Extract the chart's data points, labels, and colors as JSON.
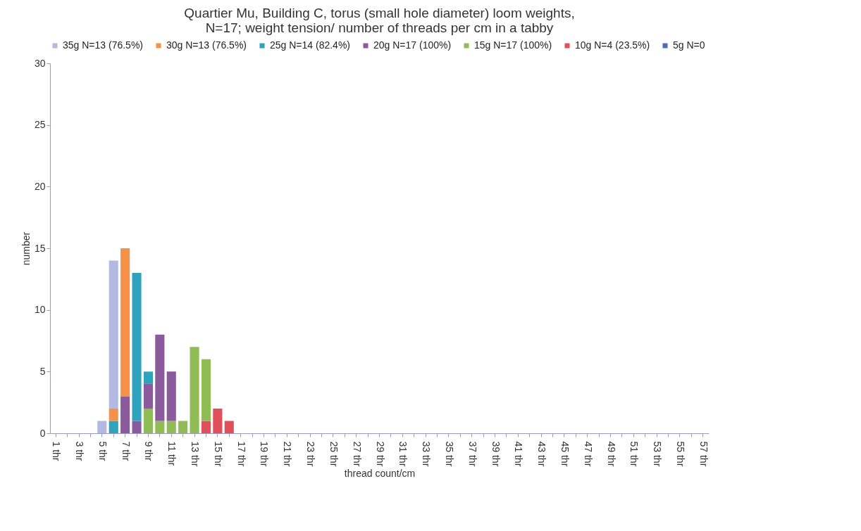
{
  "chart_data": {
    "type": "bar",
    "stacked": true,
    "title": "Quartier Mu, Building C, torus (small hole diameter) loom weights, N=17; weight tension/ number of threads per cm in a tabby",
    "xlabel": "thread count/cm",
    "ylabel": "number",
    "categories": [
      "1 thr",
      null,
      "3 thr",
      null,
      "5 thr",
      null,
      "7 thr",
      null,
      "9 thr",
      null,
      "11 thr",
      null,
      "13 thr",
      null,
      "15 thr",
      null,
      "17 thr",
      null,
      "19 thr",
      null,
      "21 thr",
      null,
      "23 thr",
      null,
      "25 thr",
      null,
      "27 thr",
      null,
      "29 thr",
      null,
      "31 thr",
      null,
      "33 thr",
      null,
      "35 thr",
      null,
      "37 thr",
      null,
      "39 thr",
      null,
      "41 thr",
      null,
      "43 thr",
      null,
      "45 thr",
      null,
      "47 thr",
      null,
      "49 thr",
      null,
      "51 thr",
      null,
      "53 thr",
      null,
      "55 thr",
      null,
      "57 thr"
    ],
    "series": [
      {
        "name": "5g N=0",
        "color": "#4a6fb5",
        "values": [
          0,
          0,
          0,
          0,
          0,
          0,
          0,
          0,
          0,
          0,
          0,
          0,
          0,
          0,
          0,
          0,
          0,
          0,
          0,
          0,
          0,
          0,
          0,
          0,
          0,
          0,
          0,
          0,
          0,
          0,
          0,
          0,
          0,
          0,
          0,
          0,
          0,
          0,
          0,
          0,
          0,
          0,
          0,
          0,
          0,
          0,
          0,
          0,
          0,
          0,
          0,
          0,
          0,
          0,
          0,
          0,
          0
        ]
      },
      {
        "name": "10g N=4 (23.5%)",
        "color": "#e0505a",
        "values": [
          0,
          0,
          0,
          0,
          0,
          0,
          0,
          0,
          0,
          0,
          0,
          0,
          0,
          1,
          2,
          1,
          0,
          0,
          0,
          0,
          0,
          0,
          0,
          0,
          0,
          0,
          0,
          0,
          0,
          0,
          0,
          0,
          0,
          0,
          0,
          0,
          0,
          0,
          0,
          0,
          0,
          0,
          0,
          0,
          0,
          0,
          0,
          0,
          0,
          0,
          0,
          0,
          0,
          0,
          0,
          0,
          0
        ]
      },
      {
        "name": "15g N=17 (100%)",
        "color": "#8fbc55",
        "values": [
          0,
          0,
          0,
          0,
          0,
          0,
          0,
          0,
          2,
          1,
          1,
          1,
          7,
          5,
          0,
          0,
          0,
          0,
          0,
          0,
          0,
          0,
          0,
          0,
          0,
          0,
          0,
          0,
          0,
          0,
          0,
          0,
          0,
          0,
          0,
          0,
          0,
          0,
          0,
          0,
          0,
          0,
          0,
          0,
          0,
          0,
          0,
          0,
          0,
          0,
          0,
          0,
          0,
          0,
          0,
          0,
          0
        ]
      },
      {
        "name": "20g N=17 (100%)",
        "color": "#8b5a9c",
        "values": [
          0,
          0,
          0,
          0,
          0,
          0,
          3,
          1,
          2,
          7,
          4,
          0,
          0,
          0,
          0,
          0,
          0,
          0,
          0,
          0,
          0,
          0,
          0,
          0,
          0,
          0,
          0,
          0,
          0,
          0,
          0,
          0,
          0,
          0,
          0,
          0,
          0,
          0,
          0,
          0,
          0,
          0,
          0,
          0,
          0,
          0,
          0,
          0,
          0,
          0,
          0,
          0,
          0,
          0,
          0,
          0,
          0
        ]
      },
      {
        "name": "25g N=14 (82.4%)",
        "color": "#2fa3bd",
        "values": [
          0,
          0,
          0,
          0,
          0,
          1,
          0,
          12,
          1,
          0,
          0,
          0,
          0,
          0,
          0,
          0,
          0,
          0,
          0,
          0,
          0,
          0,
          0,
          0,
          0,
          0,
          0,
          0,
          0,
          0,
          0,
          0,
          0,
          0,
          0,
          0,
          0,
          0,
          0,
          0,
          0,
          0,
          0,
          0,
          0,
          0,
          0,
          0,
          0,
          0,
          0,
          0,
          0,
          0,
          0,
          0,
          0
        ]
      },
      {
        "name": "30g N=13 (76.5%)",
        "color": "#f59248",
        "values": [
          0,
          0,
          0,
          0,
          0,
          1,
          12,
          0,
          0,
          0,
          0,
          0,
          0,
          0,
          0,
          0,
          0,
          0,
          0,
          0,
          0,
          0,
          0,
          0,
          0,
          0,
          0,
          0,
          0,
          0,
          0,
          0,
          0,
          0,
          0,
          0,
          0,
          0,
          0,
          0,
          0,
          0,
          0,
          0,
          0,
          0,
          0,
          0,
          0,
          0,
          0,
          0,
          0,
          0,
          0,
          0,
          0
        ]
      },
      {
        "name": "35g N=13 (76.5%)",
        "color": "#b3b9e0",
        "values": [
          0,
          0,
          0,
          0,
          1,
          12,
          0,
          0,
          0,
          0,
          0,
          0,
          0,
          0,
          0,
          0,
          0,
          0,
          0,
          0,
          0,
          0,
          0,
          0,
          0,
          0,
          0,
          0,
          0,
          0,
          0,
          0,
          0,
          0,
          0,
          0,
          0,
          0,
          0,
          0,
          0,
          0,
          0,
          0,
          0,
          0,
          0,
          0,
          0,
          0,
          0,
          0,
          0,
          0,
          0,
          0,
          0
        ]
      }
    ],
    "ylim": [
      0,
      30
    ],
    "yticks": [
      0,
      5,
      10,
      15,
      20,
      25,
      30
    ],
    "grid": false,
    "legend": "top"
  }
}
